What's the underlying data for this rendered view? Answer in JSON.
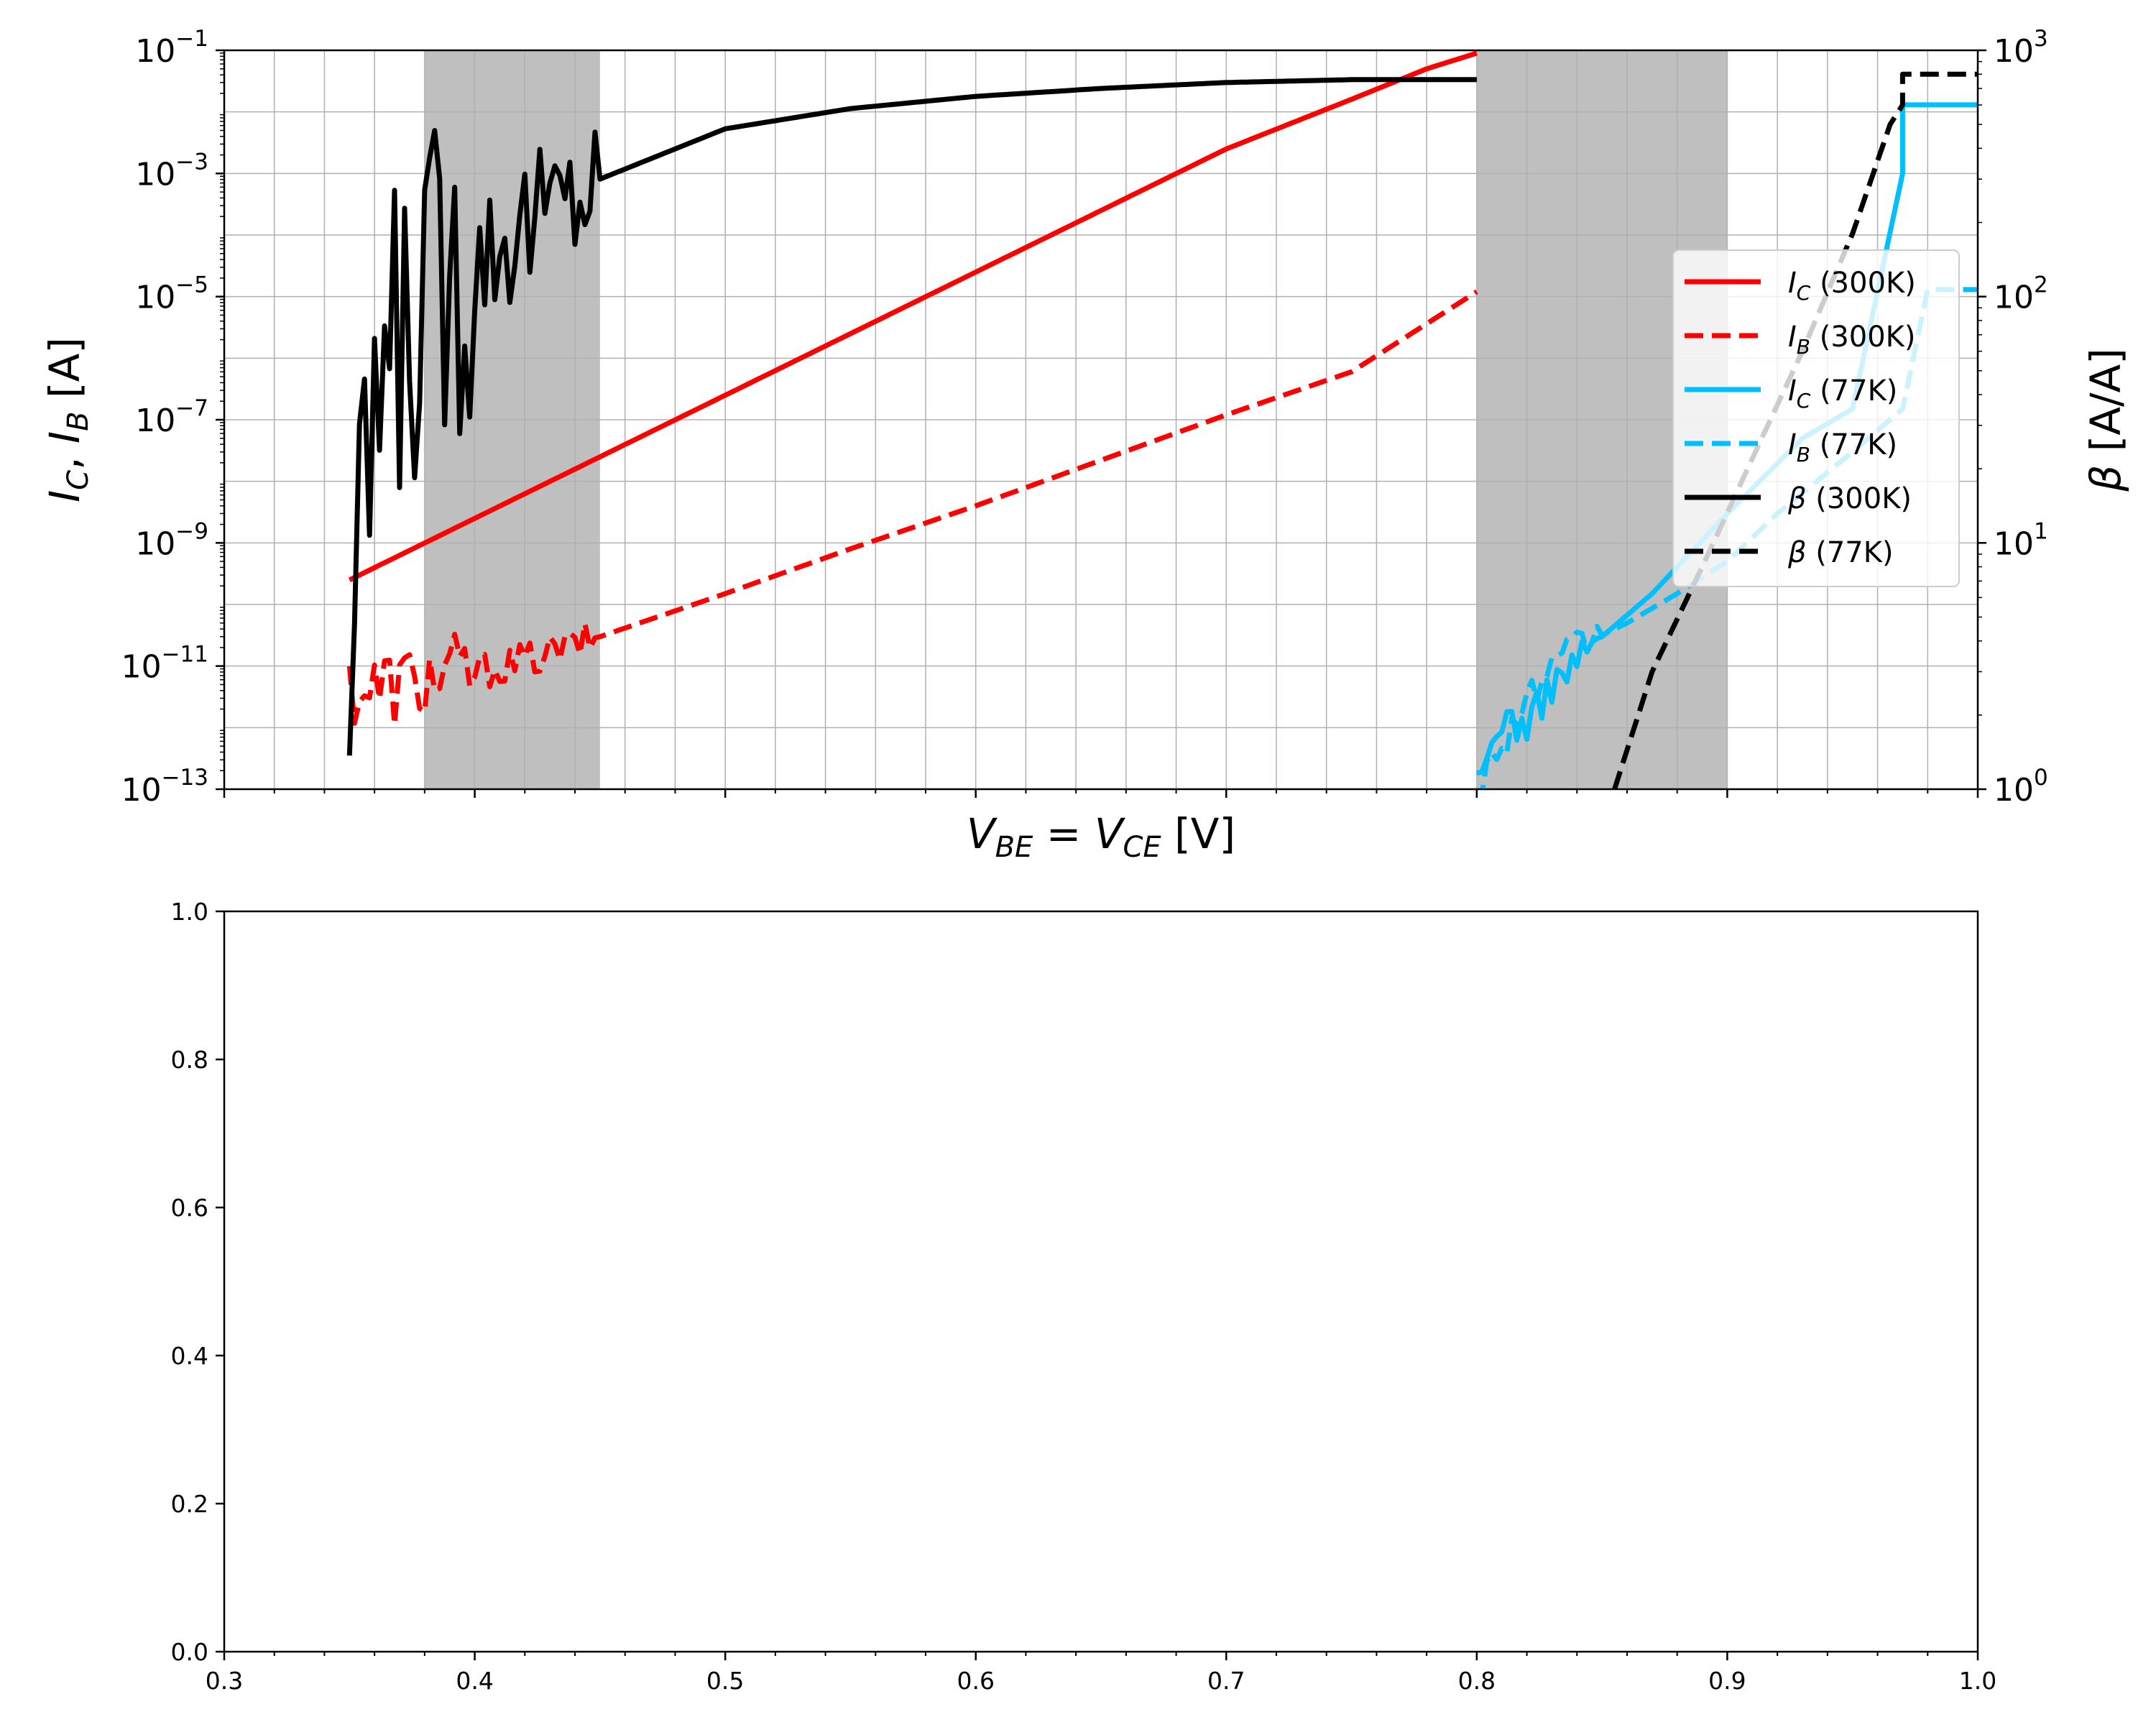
{
  "colors": {
    "ic300": "#ff0000",
    "ib300": "#ff0000",
    "ic77": "#00bfff",
    "ib77": "#00bfff",
    "beta300": "#000000",
    "beta77": "#000000",
    "shade": "#bfbfbf",
    "grid": "#b0b0b0"
  },
  "chart_data": [
    {
      "type": "line",
      "panel": "top",
      "title": "",
      "xlabel_parts": {
        "v1": "V",
        "s1": "BE",
        "eq": " = ",
        "v2": "V",
        "s2": "CE",
        "unit": "  [V]"
      },
      "ylabel_parts": {
        "i1": "I",
        "s1": "C",
        "comma": ", ",
        "i2": "I",
        "s2": "B",
        "unit": " [A]"
      },
      "y2label_parts": {
        "beta": "β",
        "unit": " [A/A]"
      },
      "xlim": [
        0.3,
        1.0
      ],
      "ylim": [
        1e-13,
        0.1
      ],
      "y2lim": [
        1,
        1000
      ],
      "yscale": "log",
      "y2scale": "log",
      "grid": "on (major and minor)",
      "yticks": [
        {
          "base": "10",
          "exp": "−13"
        },
        {
          "base": "10",
          "exp": "−11"
        },
        {
          "base": "10",
          "exp": "−9"
        },
        {
          "base": "10",
          "exp": "−7"
        },
        {
          "base": "10",
          "exp": "−5"
        },
        {
          "base": "10",
          "exp": "−3"
        },
        {
          "base": "10",
          "exp": "−1"
        }
      ],
      "y2ticks": [
        {
          "base": "10",
          "exp": "0"
        },
        {
          "base": "10",
          "exp": "1"
        },
        {
          "base": "10",
          "exp": "2"
        },
        {
          "base": "10",
          "exp": "3"
        }
      ],
      "shaded_regions": [
        [
          0.38,
          0.45
        ],
        [
          0.8,
          0.9
        ]
      ],
      "legend_position": "center-right",
      "legend": [
        {
          "id": "ic300",
          "sym": "I",
          "sub": "C",
          "temp": " (300K)",
          "style": "solid"
        },
        {
          "id": "ib300",
          "sym": "I",
          "sub": "B",
          "temp": " (300K)",
          "style": "dashed"
        },
        {
          "id": "ic77",
          "sym": "I",
          "sub": "C",
          "temp": " (77K)",
          "style": "solid"
        },
        {
          "id": "ib77",
          "sym": "I",
          "sub": "B",
          "temp": " (77K)",
          "style": "dashed"
        },
        {
          "id": "beta300",
          "sym": "β",
          "sub": "",
          "temp": " (300K)",
          "style": "solid"
        },
        {
          "id": "beta77",
          "sym": "β",
          "sub": "",
          "temp": " (77K)",
          "style": "dashed"
        }
      ],
      "series": [
        {
          "id": "ic300",
          "axis": "left",
          "style": "solid",
          "x": [
            0.35,
            0.4,
            0.45,
            0.5,
            0.55,
            0.6,
            0.65,
            0.7,
            0.75,
            0.78,
            0.8
          ],
          "y": [
            2.5e-10,
            2.5e-09,
            2.5e-08,
            2.5e-07,
            2.5e-06,
            2.5e-05,
            0.00025,
            0.0025,
            0.016,
            0.05,
            0.09
          ]
        },
        {
          "id": "ib300",
          "axis": "left",
          "style": "dashed",
          "x": [
            0.35,
            0.36,
            0.38,
            0.4,
            0.42,
            0.45,
            0.5,
            0.55,
            0.6,
            0.65,
            0.7,
            0.75,
            0.8
          ],
          "y": [
            5e-12,
            4e-12,
            6e-12,
            8e-12,
            1.2e-11,
            3e-11,
            1.5e-10,
            8e-10,
            4e-09,
            2.2e-08,
            1.2e-07,
            6e-07,
            1.2e-05
          ]
        },
        {
          "id": "ic77",
          "axis": "left",
          "style": "solid",
          "x": [
            0.8,
            0.81,
            0.82,
            0.83,
            0.85,
            0.87,
            0.9,
            0.93,
            0.95,
            0.97,
            0.97,
            1.0
          ],
          "y": [
            1e-13,
            1.5e-12,
            1e-12,
            5e-12,
            3e-11,
            1.5e-10,
            3e-09,
            5e-08,
            1.5e-07,
            0.001,
            0.013,
            0.013
          ]
        },
        {
          "id": "ib77",
          "axis": "left",
          "style": "dashed",
          "x": [
            0.8,
            0.82,
            0.84,
            0.86,
            0.88,
            0.9,
            0.92,
            0.95,
            0.97,
            0.98,
            1.0
          ],
          "y": [
            1e-13,
            3e-12,
            2e-11,
            5e-11,
            1.5e-10,
            5e-10,
            3e-09,
            3e-08,
            1.5e-07,
            1.3e-05,
            1.3e-05
          ]
        },
        {
          "id": "beta300",
          "axis": "right",
          "style": "solid",
          "x": [
            0.35,
            0.36,
            0.38,
            0.4,
            0.42,
            0.45,
            0.5,
            0.55,
            0.6,
            0.65,
            0.7,
            0.75,
            0.8
          ],
          "y": [
            2,
            40,
            100,
            150,
            200,
            300,
            480,
            580,
            650,
            700,
            740,
            760,
            760
          ]
        },
        {
          "id": "beta77",
          "axis": "right",
          "style": "dashed",
          "x": [
            0.855,
            0.87,
            0.89,
            0.91,
            0.93,
            0.95,
            0.965,
            0.97,
            0.97,
            1.0
          ],
          "y": [
            1,
            3,
            8,
            22,
            60,
            180,
            500,
            600,
            800,
            800
          ]
        }
      ]
    },
    {
      "type": "line",
      "panel": "bottom",
      "title": "",
      "xlim": [
        0.3,
        1.0
      ],
      "ylim": [
        0.0,
        1.0
      ],
      "xticks": [
        "0.3",
        "0.4",
        "0.5",
        "0.6",
        "0.7",
        "0.8",
        "0.9",
        "1.0"
      ],
      "yticks": [
        "0.0",
        "0.2",
        "0.4",
        "0.6",
        "0.8",
        "1.0"
      ],
      "series": []
    }
  ]
}
